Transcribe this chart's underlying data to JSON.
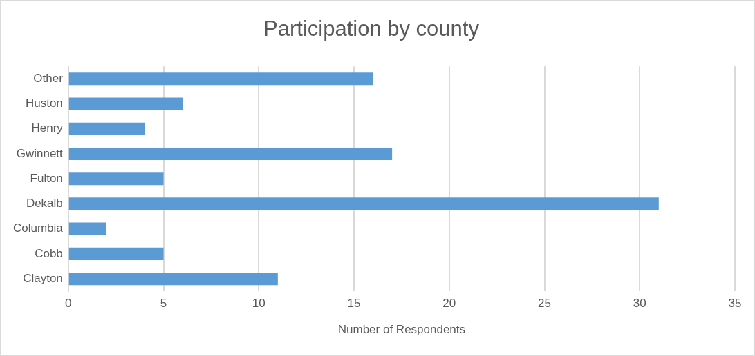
{
  "chart_data": {
    "type": "bar",
    "orientation": "horizontal",
    "title": "Participation by county",
    "xlabel": "Number of Respondents",
    "categories": [
      "Other",
      "Huston",
      "Henry",
      "Gwinnett",
      "Fulton",
      "Dekalb",
      "Columbia",
      "Cobb",
      "Clayton"
    ],
    "values": [
      16,
      6,
      4,
      17,
      5,
      31,
      2,
      5,
      11
    ],
    "color": "#5b9bd5",
    "xlim": [
      0,
      35
    ],
    "xticks": [
      0,
      5,
      10,
      15,
      20,
      25,
      30,
      35
    ],
    "grid": "x"
  }
}
